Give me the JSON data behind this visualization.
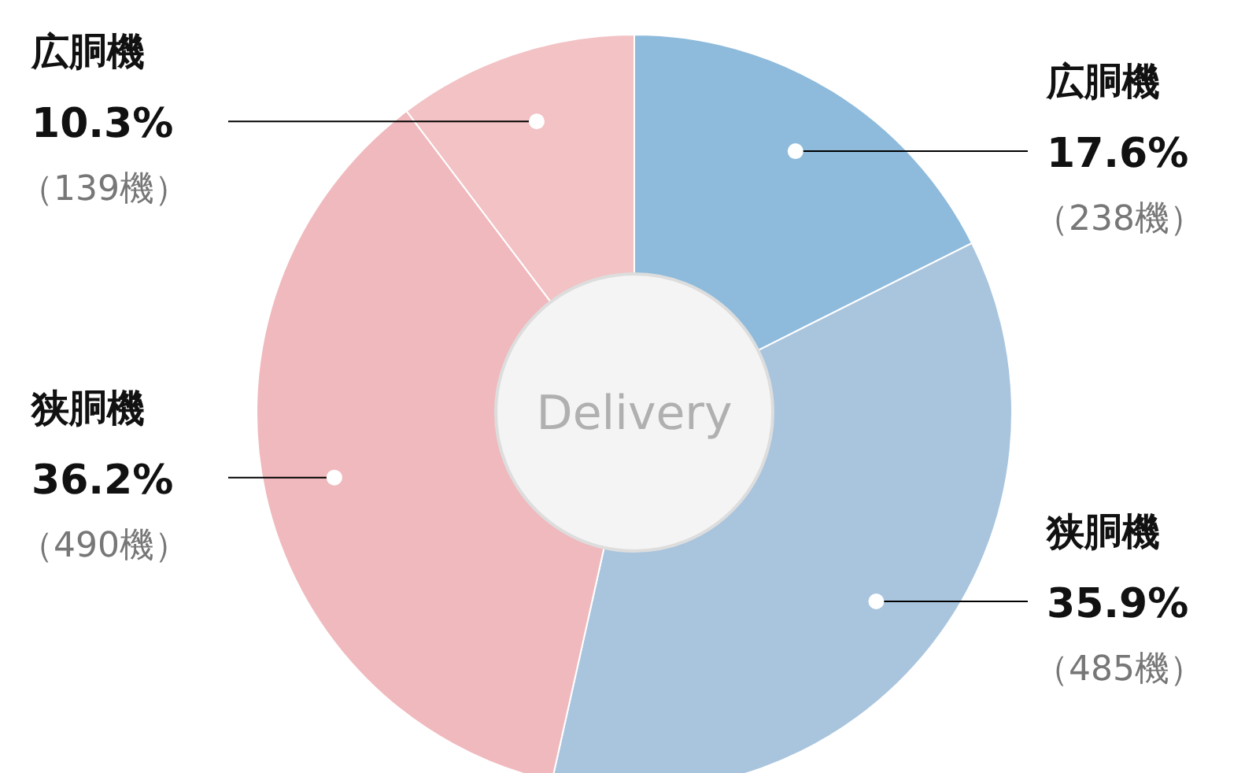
{
  "chart_data": {
    "type": "donut",
    "title": "Delivery",
    "categories": [
      "広胴機",
      "狭胴機",
      "狭胴機",
      "広胴機"
    ],
    "values": [
      17.6,
      35.9,
      36.2,
      10.3
    ],
    "value_labels": [
      "17.6%\n（238機）",
      "35.9%\n（485機）",
      "36.2%\n（490機）",
      "10.3%\n（139機）"
    ],
    "colors": [
      "#8ebbdc",
      "#a9c5de",
      "#f0b9bd",
      "#f2c2c5"
    ],
    "legend": false
  }
}
